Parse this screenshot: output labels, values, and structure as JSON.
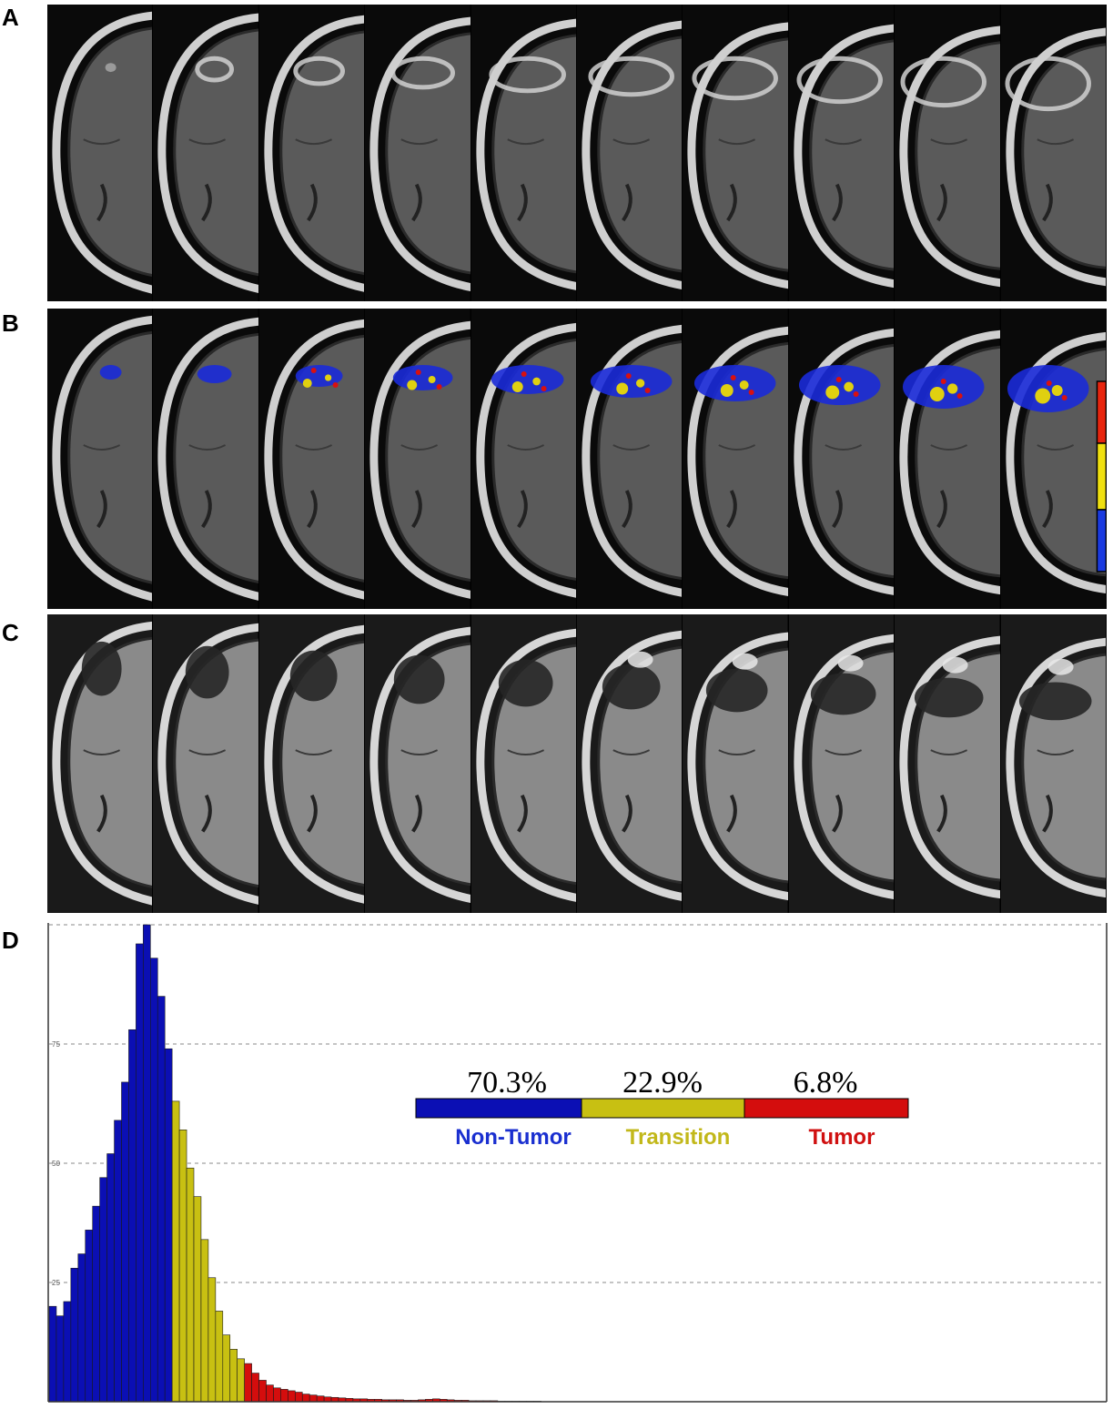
{
  "panels": {
    "a": "A",
    "b": "B",
    "c": "C",
    "d": "D"
  },
  "colors": {
    "non_tumor": "#0b0fb4",
    "transition": "#c8c012",
    "tumor": "#d40d0d",
    "label_non_tumor": "#1a2fd0",
    "label_transition": "#c2b81a",
    "label_tumor": "#d01010"
  },
  "colorbar_icon": "vertical-colorbar-red-yellow-blue",
  "chart_data": {
    "type": "bar",
    "grid": true,
    "ylim": [
      0,
      100
    ],
    "yticks": [
      {
        "value": 25,
        "label": "25"
      },
      {
        "value": 50,
        "label": "50"
      },
      {
        "value": 75,
        "label": "75"
      }
    ],
    "series": [
      {
        "name": "Non-Tumor",
        "color": "#0b0fb4",
        "values": [
          20,
          18,
          21,
          28,
          31,
          36,
          41,
          47,
          52,
          59,
          67,
          78,
          96,
          100,
          93,
          85,
          74
        ]
      },
      {
        "name": "Transition",
        "color": "#c8c012",
        "values": [
          63,
          57,
          49,
          43,
          34,
          26,
          19,
          14,
          11,
          9
        ]
      },
      {
        "name": "Tumor",
        "color": "#d40d0d",
        "values": [
          8,
          6,
          4.5,
          3.5,
          2.9,
          2.6,
          2.3,
          2.0,
          1.6,
          1.4,
          1.2,
          1.0,
          0.9,
          0.8,
          0.7,
          0.6,
          0.6,
          0.5,
          0.5,
          0.4,
          0.4,
          0.4,
          0.3,
          0.3,
          0.4,
          0.5,
          0.6,
          0.5,
          0.4,
          0.3,
          0.3,
          0.2,
          0.2,
          0.2,
          0.2,
          0.1,
          0.1,
          0.1,
          0.1,
          0.1,
          0.1
        ]
      }
    ],
    "proportion_bar": [
      {
        "label": "Non-Tumor",
        "percent": "70.3%",
        "value": 70.3
      },
      {
        "label": "Transition",
        "percent": "22.9%",
        "value": 22.9
      },
      {
        "label": "Tumor",
        "percent": "6.8%",
        "value": 6.8
      }
    ]
  }
}
